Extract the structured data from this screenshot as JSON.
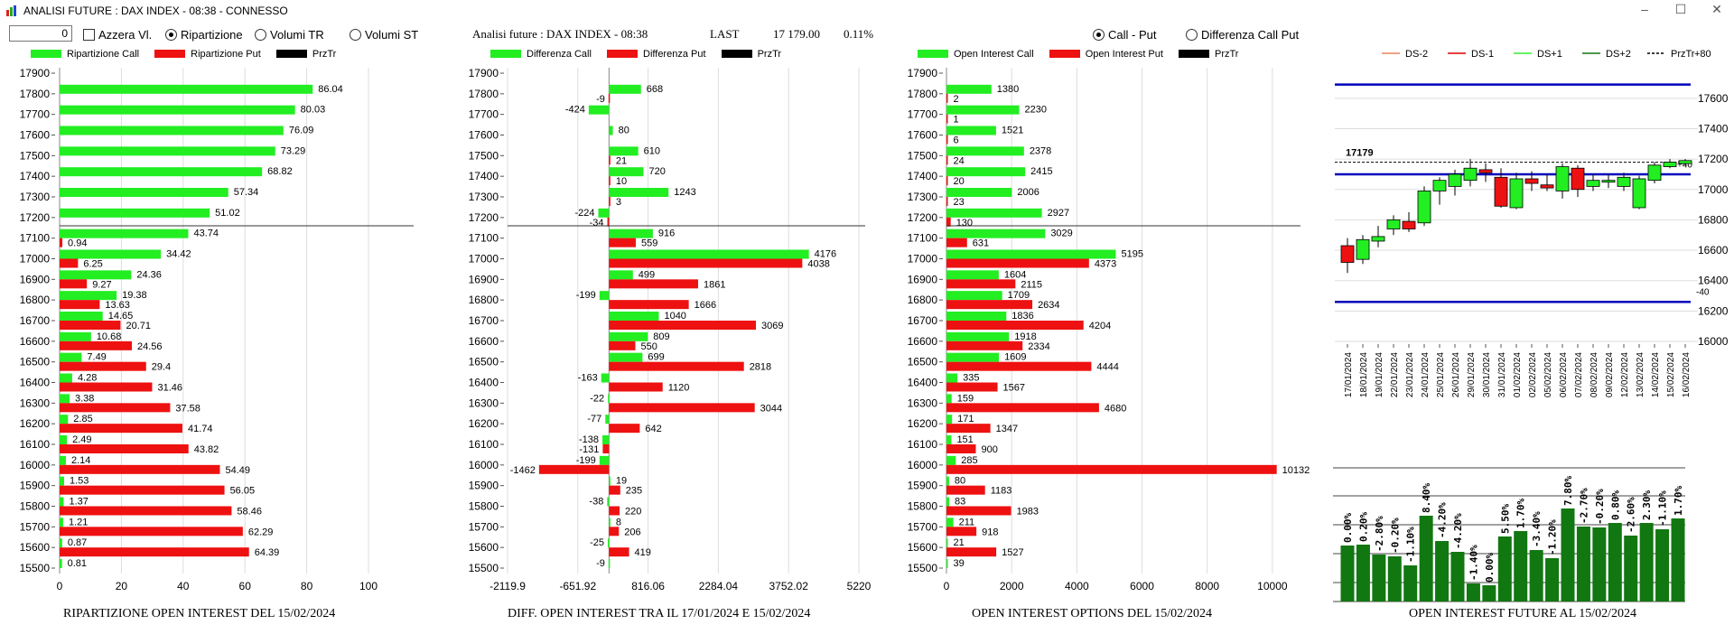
{
  "window": {
    "title": "ANALISI FUTURE : DAX INDEX - 08:38 - CONNESSO",
    "minimize": "–",
    "maximize": "☐",
    "close": "✕"
  },
  "controls": {
    "number_value": "0",
    "azzera_label": "Azzera Vl.",
    "radios": [
      "Ripartizione",
      "Volumi TR",
      "Volumi ST"
    ],
    "selected_radio": "Ripartizione",
    "mid_header": "Analisi future : DAX INDEX - 08:38",
    "last_label": "LAST",
    "last_value": "17 179.00",
    "last_change": "0.11%",
    "right_radios": [
      "Call - Put",
      "Differenza Call Put"
    ],
    "right_selected": "Call - Put"
  },
  "colors": {
    "green": "#22ee22",
    "red": "#ee1111",
    "black": "#000000",
    "dark_green": "#117711",
    "blue": "#0000bb"
  },
  "chart_data": [
    {
      "type": "bar",
      "orientation": "horizontal",
      "caption": "RIPARTIZIONE OPEN INTEREST DEL 15/02/2024",
      "legend": [
        "Ripartizione Call",
        "Ripartizione Put",
        "PrzTr"
      ],
      "categories": [
        "17900",
        "17800",
        "17700",
        "17600",
        "17500",
        "17400",
        "17300",
        "17200",
        "17100",
        "17000",
        "16900",
        "16800",
        "16700",
        "16600",
        "16500",
        "16400",
        "16300",
        "16200",
        "16100",
        "16000",
        "15900",
        "15800",
        "15700",
        "15600",
        "15500"
      ],
      "series": [
        {
          "name": "Ripartizione Call",
          "values": [
            null,
            86.04,
            80.03,
            76.09,
            73.29,
            68.82,
            57.34,
            51.02,
            43.74,
            34.42,
            24.36,
            19.38,
            14.65,
            10.68,
            7.49,
            4.28,
            3.38,
            2.85,
            2.49,
            2.14,
            1.53,
            1.37,
            1.21,
            0.87,
            0.81
          ]
        },
        {
          "name": "Ripartizione Put",
          "values": [
            null,
            null,
            null,
            null,
            null,
            null,
            null,
            null,
            0.94,
            6.25,
            9.27,
            13.63,
            20.71,
            24.56,
            29.4,
            31.46,
            37.58,
            41.74,
            43.82,
            54.49,
            56.05,
            58.46,
            62.29,
            64.39,
            null
          ]
        }
      ],
      "xticks": [
        "0",
        "20",
        "40",
        "60",
        "80",
        "100"
      ],
      "xlim": [
        0,
        105
      ],
      "przTr_level": 17200
    },
    {
      "type": "bar",
      "orientation": "horizontal",
      "caption": "DIFF. OPEN INTEREST TRA IL 17/01/2024 E 15/02/2024",
      "legend": [
        "Differenza Call",
        "Differenza Put",
        "PrzTr"
      ],
      "categories": [
        "17900",
        "17800",
        "17700",
        "17600",
        "17500",
        "17400",
        "17300",
        "17200",
        "17100",
        "17000",
        "16900",
        "16800",
        "16700",
        "16600",
        "16500",
        "16400",
        "16300",
        "16200",
        "16100",
        "16000",
        "15900",
        "15800",
        "15700",
        "15600",
        "15500"
      ],
      "series": [
        {
          "name": "Differenza Call",
          "values": [
            null,
            668,
            -424,
            80,
            610,
            720,
            1243,
            -224,
            916,
            4176,
            499,
            -199,
            1040,
            809,
            699,
            -163,
            -22,
            -77,
            -138,
            -199,
            19,
            -38,
            8,
            -25,
            -9
          ]
        },
        {
          "name": "Differenza Put",
          "values": [
            null,
            -9,
            null,
            null,
            21,
            10,
            3,
            -34,
            559,
            4038,
            1861,
            1666,
            3069,
            550,
            2818,
            1120,
            3044,
            642,
            -131,
            -1462,
            235,
            220,
            206,
            419,
            null
          ]
        }
      ],
      "xticks": [
        "-2119.9",
        "-651.92",
        "816.06",
        "2284.04",
        "3752.02",
        "5220"
      ],
      "xlim": [
        -2119.9,
        5220
      ],
      "przTr_level": 17200
    },
    {
      "type": "bar",
      "orientation": "horizontal",
      "caption": "OPEN INTEREST OPTIONS DEL 15/02/2024",
      "legend": [
        "Open Interest Call",
        "Open Interest Put",
        "PrzTr"
      ],
      "categories": [
        "17900",
        "17800",
        "17700",
        "17600",
        "17500",
        "17400",
        "17300",
        "17200",
        "17100",
        "17000",
        "16900",
        "16800",
        "16700",
        "16600",
        "16500",
        "16400",
        "16300",
        "16200",
        "16100",
        "16000",
        "15900",
        "15800",
        "15700",
        "15600",
        "15500"
      ],
      "series": [
        {
          "name": "Open Interest Call",
          "values": [
            null,
            1380,
            2230,
            1521,
            2378,
            2415,
            2006,
            2927,
            3029,
            5195,
            1604,
            1709,
            1836,
            1918,
            1609,
            335,
            159,
            171,
            151,
            285,
            80,
            83,
            211,
            21,
            39
          ]
        },
        {
          "name": "Open Interest Put",
          "values": [
            null,
            2,
            1,
            6,
            24,
            20,
            23,
            130,
            631,
            4373,
            2115,
            2634,
            4204,
            2334,
            4444,
            1567,
            4680,
            1347,
            900,
            10132,
            1183,
            1983,
            918,
            1527,
            null
          ]
        }
      ],
      "xticks": [
        "0",
        "2000",
        "4000",
        "6000",
        "8000",
        "10000"
      ],
      "xlim": [
        0,
        11000
      ],
      "przTr_level": 17200
    },
    {
      "type": "candlestick",
      "legend": [
        "DS-2",
        "DS-1",
        "DS+1",
        "DS+2",
        "PrzTr"
      ],
      "legend_colors": [
        "#f08060",
        "#dd0000",
        "#33ee33",
        "#117711",
        "#000000"
      ],
      "dates": [
        "17/01/2024",
        "18/01/2024",
        "19/01/2024",
        "22/01/2024",
        "23/01/2024",
        "24/01/2024",
        "25/01/2024",
        "26/01/2024",
        "29/01/2024",
        "30/01/2024",
        "31/01/2024",
        "01/02/2024",
        "02/02/2024",
        "05/02/2024",
        "06/02/2024",
        "07/02/2024",
        "08/02/2024",
        "09/02/2024",
        "12/02/2024",
        "13/02/2024",
        "14/02/2024",
        "15/02/2024",
        "16/02/2024"
      ],
      "ohlc": [
        {
          "o": 16630,
          "h": 16680,
          "l": 16450,
          "c": 16520
        },
        {
          "o": 16540,
          "h": 16700,
          "l": 16510,
          "c": 16670
        },
        {
          "o": 16660,
          "h": 16760,
          "l": 16620,
          "c": 16690
        },
        {
          "o": 16740,
          "h": 16830,
          "l": 16700,
          "c": 16800
        },
        {
          "o": 16790,
          "h": 16850,
          "l": 16720,
          "c": 16740
        },
        {
          "o": 16780,
          "h": 17020,
          "l": 16760,
          "c": 16990
        },
        {
          "o": 16990,
          "h": 17080,
          "l": 16900,
          "c": 17060
        },
        {
          "o": 17020,
          "h": 17130,
          "l": 16960,
          "c": 17100
        },
        {
          "o": 17060,
          "h": 17200,
          "l": 17020,
          "c": 17140
        },
        {
          "o": 17130,
          "h": 17170,
          "l": 17050,
          "c": 17110
        },
        {
          "o": 17080,
          "h": 17140,
          "l": 16880,
          "c": 16890
        },
        {
          "o": 16880,
          "h": 17110,
          "l": 16870,
          "c": 17070
        },
        {
          "o": 17070,
          "h": 17120,
          "l": 16990,
          "c": 17040
        },
        {
          "o": 17030,
          "h": 17100,
          "l": 16990,
          "c": 17010
        },
        {
          "o": 16990,
          "h": 17170,
          "l": 16940,
          "c": 17150
        },
        {
          "o": 17140,
          "h": 17160,
          "l": 16950,
          "c": 17000
        },
        {
          "o": 17020,
          "h": 17100,
          "l": 16990,
          "c": 17060
        },
        {
          "o": 17050,
          "h": 17100,
          "l": 17010,
          "c": 17060
        },
        {
          "o": 17020,
          "h": 17110,
          "l": 16990,
          "c": 17080
        },
        {
          "o": 16880,
          "h": 17090,
          "l": 16870,
          "c": 17070
        },
        {
          "o": 17060,
          "h": 17180,
          "l": 17040,
          "c": 17160
        },
        {
          "o": 17150,
          "h": 17200,
          "l": 17140,
          "c": 17180
        },
        {
          "o": 17170,
          "h": 17200,
          "l": 17160,
          "c": 17190
        }
      ],
      "yticks": [
        "17600",
        "17400",
        "17200",
        "17000",
        "16800",
        "16600",
        "16400",
        "16200",
        "16000"
      ],
      "ylim": [
        16000,
        17700
      ],
      "blue_lines": [
        17690,
        17100,
        16260
      ],
      "przTr_value": 17179,
      "przTr_label": "17179",
      "plus_label": "+80",
      "plus40_label": "+40",
      "minus40_label": "-40"
    },
    {
      "type": "bar",
      "caption": "OPEN INTEREST FUTURE AL 15/02/2024",
      "labels": [
        "0.00%",
        "0.20%",
        "-2.80%",
        "-0.20%",
        "-1.10%",
        "8.40%",
        "-4.20%",
        "-4.20%",
        "-1.40%",
        "0.00%",
        "5.50%",
        "1.70%",
        "-3.40%",
        "-1.20%",
        "7.80%",
        "-2.70%",
        "-0.20%",
        "0.80%",
        "-2.60%",
        "2.30%",
        "-1.10%",
        "1.70%"
      ],
      "values": [
        0.0,
        0.2,
        -2.8,
        -0.2,
        -1.1,
        8.4,
        -4.2,
        -4.2,
        -1.4,
        0.0,
        5.5,
        1.7,
        -3.4,
        -1.2,
        7.8,
        -2.7,
        -0.2,
        0.8,
        -2.6,
        2.3,
        -1.1,
        1.7
      ],
      "heights": [
        62,
        63,
        52,
        50,
        40,
        95,
        67,
        55,
        20,
        18,
        72,
        78,
        57,
        48,
        103,
        83,
        82,
        87,
        73,
        87,
        80,
        92
      ]
    }
  ]
}
